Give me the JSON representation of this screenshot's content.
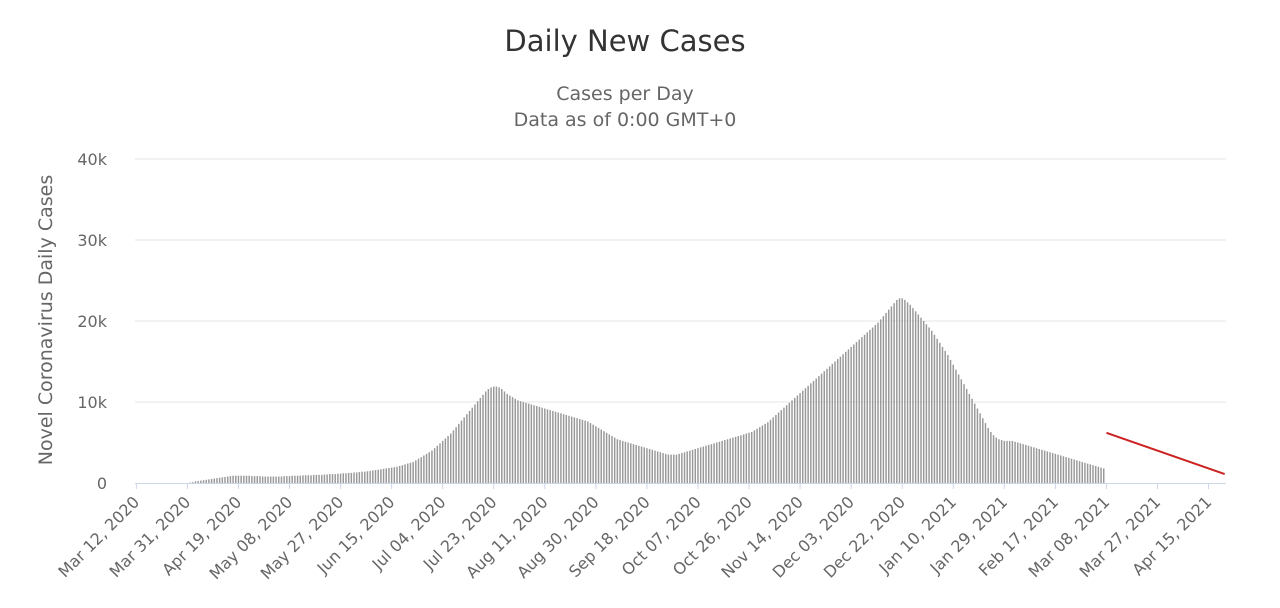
{
  "chart_data": {
    "type": "bar",
    "title": "Daily New Cases",
    "subtitle": [
      "Cases per Day",
      "Data as of 0:00 GMT+0"
    ],
    "ylabel": "Novel Coronavirus Daily Cases",
    "xlabel": "",
    "ylim": [
      0,
      40000
    ],
    "y_ticks": [
      {
        "value": 0,
        "label": "0"
      },
      {
        "value": 10000,
        "label": "10k"
      },
      {
        "value": 20000,
        "label": "20k"
      },
      {
        "value": 30000,
        "label": "30k"
      },
      {
        "value": 40000,
        "label": "40k"
      }
    ],
    "x_ticks": [
      "Mar 12, 2020",
      "Mar 31, 2020",
      "Apr 19, 2020",
      "May 08, 2020",
      "May 27, 2020",
      "Jun 15, 2020",
      "Jul 04, 2020",
      "Jul 23, 2020",
      "Aug 11, 2020",
      "Aug 30, 2020",
      "Sep 18, 2020",
      "Oct 07, 2020",
      "Oct 26, 2020",
      "Nov 14, 2020",
      "Dec 03, 2020",
      "Dec 22, 2020",
      "Jan 10, 2021",
      "Jan 29, 2021",
      "Feb 17, 2021",
      "Mar 08, 2021",
      "Mar 27, 2021",
      "Apr 15, 2021"
    ],
    "grid": true,
    "legend": "none",
    "x_start": "Mar 12, 2020",
    "x_end": "Apr 21, 2021",
    "series": [
      {
        "type": "bar",
        "values": [
          0,
          0,
          0,
          0,
          0,
          0,
          0,
          0,
          0,
          0,
          0,
          0,
          0,
          0,
          0,
          0,
          0,
          0,
          0,
          0,
          50,
          100,
          200,
          250,
          300,
          350,
          400,
          450,
          500,
          550,
          600,
          650,
          700,
          750,
          800,
          850,
          900,
          900,
          900,
          900,
          900,
          900,
          900,
          850,
          850,
          850,
          850,
          800,
          800,
          800,
          800,
          800,
          800,
          800,
          800,
          850,
          850,
          850,
          900,
          900,
          900,
          900,
          950,
          950,
          950,
          950,
          1000,
          1000,
          1000,
          1000,
          1050,
          1050,
          1100,
          1100,
          1100,
          1150,
          1150,
          1200,
          1200,
          1250,
          1250,
          1300,
          1300,
          1350,
          1400,
          1400,
          1450,
          1500,
          1550,
          1600,
          1650,
          1700,
          1750,
          1800,
          1850,
          1900,
          1950,
          2000,
          2100,
          2200,
          2300,
          2400,
          2500,
          2600,
          2800,
          3000,
          3200,
          3400,
          3600,
          3800,
          4000,
          4300,
          4600,
          4900,
          5200,
          5500,
          5800,
          6100,
          6500,
          6900,
          7300,
          7700,
          8100,
          8500,
          8900,
          9300,
          9700,
          10100,
          10500,
          10900,
          11300,
          11600,
          11800,
          11900,
          11900,
          11800,
          11600,
          11300,
          11000,
          10800,
          10600,
          10400,
          10200,
          10100,
          10000,
          9900,
          9800,
          9700,
          9600,
          9500,
          9400,
          9300,
          9200,
          9100,
          9000,
          8900,
          8800,
          8700,
          8600,
          8500,
          8400,
          8300,
          8200,
          8100,
          8000,
          7900,
          7800,
          7700,
          7600,
          7400,
          7200,
          7000,
          6800,
          6600,
          6400,
          6200,
          6000,
          5800,
          5600,
          5400,
          5300,
          5200,
          5100,
          5000,
          4900,
          4800,
          4700,
          4600,
          4500,
          4400,
          4300,
          4200,
          4100,
          4000,
          3900,
          3800,
          3700,
          3600,
          3500,
          3500,
          3500,
          3500,
          3600,
          3700,
          3800,
          3900,
          4000,
          4100,
          4200,
          4300,
          4400,
          4500,
          4600,
          4700,
          4800,
          4900,
          5000,
          5100,
          5200,
          5300,
          5400,
          5500,
          5600,
          5700,
          5800,
          5900,
          6000,
          6100,
          6200,
          6300,
          6500,
          6700,
          6900,
          7100,
          7300,
          7500,
          7800,
          8100,
          8400,
          8700,
          9000,
          9300,
          9600,
          9900,
          10200,
          10500,
          10800,
          11100,
          11400,
          11700,
          12000,
          12300,
          12600,
          12900,
          13200,
          13500,
          13800,
          14100,
          14400,
          14700,
          15000,
          15300,
          15600,
          15900,
          16200,
          16500,
          16800,
          17100,
          17400,
          17700,
          18000,
          18300,
          18600,
          18900,
          19200,
          19500,
          19800,
          20200,
          20600,
          21000,
          21400,
          21800,
          22200,
          22600,
          22800,
          22800,
          22600,
          22300,
          22000,
          21600,
          21200,
          20800,
          20400,
          20000,
          19600,
          19200,
          18800,
          18300,
          17800,
          17300,
          16800,
          16300,
          15800,
          15200,
          14600,
          14000,
          13400,
          12800,
          12200,
          11600,
          11000,
          10400,
          9800,
          9200,
          8600,
          8000,
          7400,
          6800,
          6300,
          5900,
          5600,
          5400,
          5300,
          5200,
          5200,
          5200,
          5200,
          5100,
          5000,
          4900,
          4800,
          4700,
          4600,
          4500,
          4400,
          4300,
          4200,
          4100,
          4000,
          3900,
          3800,
          3700,
          3600,
          3500,
          3400,
          3300,
          3200,
          3100,
          3000,
          2900,
          2800,
          2700,
          2600,
          2500,
          2400,
          2300,
          2200,
          2100,
          2000,
          1900,
          1800
        ]
      },
      {
        "type": "line",
        "name": "",
        "color": "#cc2222",
        "x": [
          "Mar 08, 2021",
          "Apr 21, 2021"
        ],
        "y": [
          6200,
          1100
        ]
      }
    ],
    "colors": {
      "bars": "#999999",
      "trend": "#cc2222",
      "grid": "#e6e6e6",
      "baseline": "#ccd6eb"
    }
  }
}
